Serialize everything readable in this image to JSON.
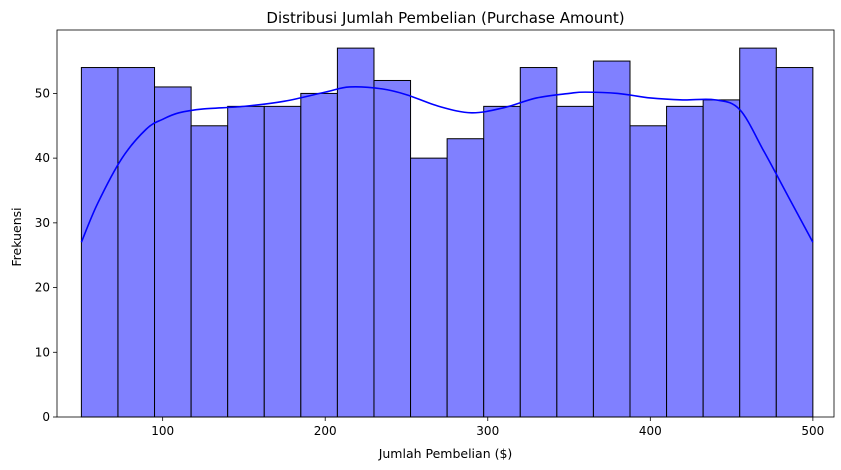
{
  "chart_data": {
    "type": "bar",
    "title": "Distribusi Jumlah Pembelian (Purchase Amount)",
    "xlabel": "Jumlah Pembelian ($)",
    "ylabel": "Frekuensi",
    "xlim": [
      35,
      513
    ],
    "ylim": [
      0,
      59.8
    ],
    "x_ticks": [
      100,
      200,
      300,
      400,
      500
    ],
    "y_ticks": [
      0,
      10,
      20,
      30,
      40,
      50
    ],
    "bins": {
      "start": 50,
      "end": 500,
      "count": 20,
      "values": [
        54,
        54,
        51,
        45,
        48,
        48,
        50,
        57,
        52,
        40,
        43,
        48,
        54,
        48,
        55,
        45,
        48,
        49,
        57,
        54
      ]
    },
    "kde": {
      "x": [
        50,
        60,
        75,
        90,
        100,
        110,
        125,
        150,
        175,
        200,
        215,
        235,
        250,
        270,
        290,
        310,
        330,
        350,
        360,
        380,
        400,
        420,
        440,
        455,
        470,
        485,
        500
      ],
      "y": [
        27,
        33,
        40,
        44.5,
        46,
        47,
        47.6,
        48,
        48.8,
        50.2,
        51,
        50.7,
        49.8,
        48,
        47,
        47.8,
        49.3,
        50,
        50.2,
        50,
        49.3,
        49,
        49,
        47.5,
        41,
        34,
        27
      ]
    },
    "bar_fill": "#8080ff",
    "bar_edge": "#000000",
    "kde_color": "#0000ff",
    "grid": false,
    "legend": "none"
  }
}
